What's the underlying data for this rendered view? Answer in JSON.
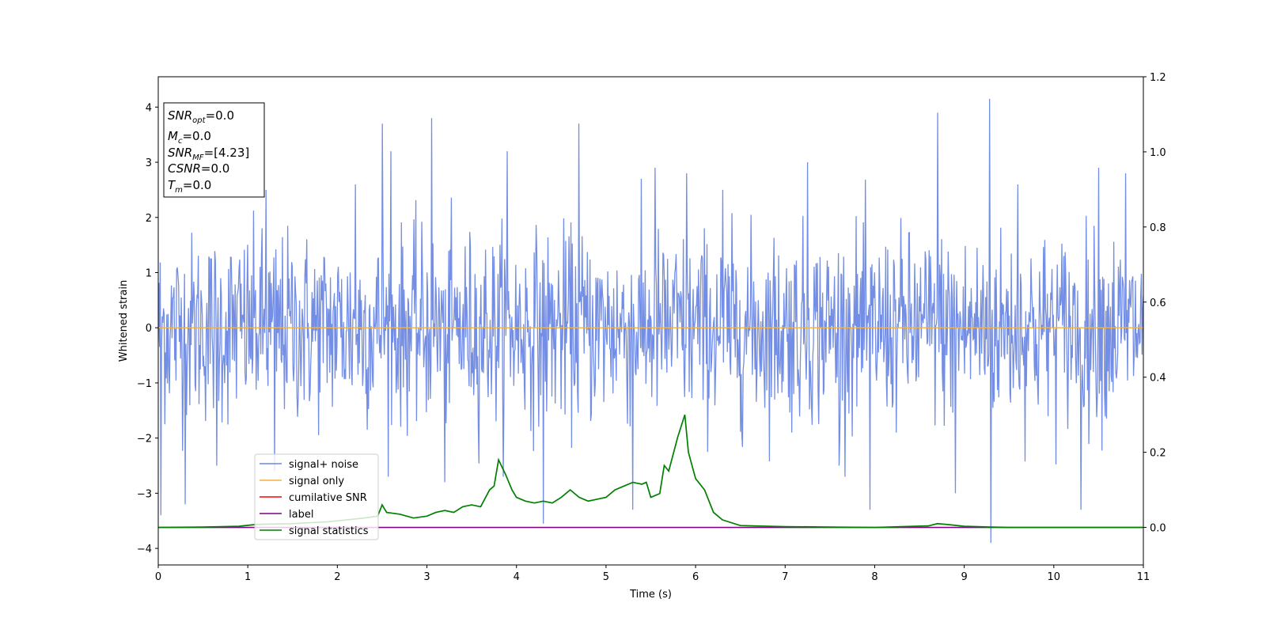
{
  "chart_data": {
    "type": "line",
    "xlabel": "Time (s)",
    "ylabel": "Whitened strain",
    "xlim": [
      0,
      11
    ],
    "ylim": [
      -4.3,
      4.55
    ],
    "y2lim": [
      -0.1,
      1.2
    ],
    "xticks": [
      "0",
      "1",
      "2",
      "3",
      "4",
      "5",
      "6",
      "7",
      "8",
      "9",
      "10",
      "11"
    ],
    "yticks": [
      "−4",
      "−3",
      "−2",
      "−1",
      "0",
      "1",
      "2",
      "3",
      "4"
    ],
    "y2ticks": [
      "0.0",
      "0.2",
      "0.4",
      "0.6",
      "0.8",
      "1.0",
      "1.2"
    ],
    "grid": false,
    "legend_position": "lower-left",
    "series": [
      {
        "name": "signal+ noise",
        "color": "#6b88e3",
        "axis": "left",
        "style": "noise",
        "sigma": 0.85,
        "samples": 1500,
        "spikes": [
          {
            "x": 0.03,
            "y": -3.4
          },
          {
            "x": 0.3,
            "y": -3.2
          },
          {
            "x": 0.65,
            "y": -2.5
          },
          {
            "x": 1.3,
            "y": -2.6
          },
          {
            "x": 2.5,
            "y": 3.7
          },
          {
            "x": 3.05,
            "y": 3.8
          },
          {
            "x": 2.6,
            "y": 3.2
          },
          {
            "x": 3.2,
            "y": -2.8
          },
          {
            "x": 3.9,
            "y": 3.2
          },
          {
            "x": 4.3,
            "y": -3.55
          },
          {
            "x": 4.7,
            "y": 3.7
          },
          {
            "x": 5.3,
            "y": -3.3
          },
          {
            "x": 5.55,
            "y": 2.9
          },
          {
            "x": 5.9,
            "y": 2.8
          },
          {
            "x": 7.25,
            "y": 3.0
          },
          {
            "x": 7.95,
            "y": -3.3
          },
          {
            "x": 8.7,
            "y": 3.9
          },
          {
            "x": 8.9,
            "y": -3.0
          },
          {
            "x": 9.28,
            "y": 4.15
          },
          {
            "x": 9.3,
            "y": -3.9
          },
          {
            "x": 10.3,
            "y": -3.3
          },
          {
            "x": 10.5,
            "y": 2.9
          },
          {
            "x": 1.2,
            "y": 2.5
          },
          {
            "x": 6.3,
            "y": 2.5
          },
          {
            "x": 7.6,
            "y": -2.5
          },
          {
            "x": 10.8,
            "y": 2.8
          },
          {
            "x": 2.2,
            "y": 2.6
          },
          {
            "x": 9.6,
            "y": 2.6
          }
        ]
      },
      {
        "name": "signal only",
        "color": "#f5b041",
        "axis": "left",
        "x": [
          0,
          11
        ],
        "y": [
          0,
          0
        ]
      },
      {
        "name": "cumilative SNR",
        "color": "#ff0000",
        "axis": "right",
        "x": [
          0,
          11
        ],
        "y": [
          0,
          0
        ]
      },
      {
        "name": "label",
        "color": "#800080",
        "axis": "right",
        "x": [
          0,
          11
        ],
        "y": [
          0,
          0
        ]
      },
      {
        "name": "signal statistics",
        "color": "#008000",
        "axis": "right",
        "x": [
          0,
          0.5,
          0.9,
          1.1,
          1.5,
          1.9,
          2.1,
          2.3,
          2.45,
          2.5,
          2.55,
          2.7,
          2.85,
          3.0,
          3.1,
          3.2,
          3.3,
          3.4,
          3.5,
          3.6,
          3.7,
          3.75,
          3.8,
          3.88,
          3.95,
          4.0,
          4.1,
          4.2,
          4.3,
          4.4,
          4.5,
          4.6,
          4.7,
          4.8,
          4.9,
          5.0,
          5.1,
          5.2,
          5.3,
          5.4,
          5.45,
          5.5,
          5.6,
          5.65,
          5.7,
          5.8,
          5.88,
          5.92,
          6.0,
          6.1,
          6.2,
          6.3,
          6.5,
          7.0,
          7.5,
          8.0,
          8.3,
          8.6,
          8.7,
          8.8,
          9.0,
          9.3,
          9.5,
          10.0,
          10.5,
          11.0
        ],
        "y": [
          0.0,
          0.001,
          0.003,
          0.008,
          0.01,
          0.015,
          0.02,
          0.025,
          0.03,
          0.06,
          0.04,
          0.035,
          0.025,
          0.03,
          0.04,
          0.045,
          0.04,
          0.055,
          0.06,
          0.055,
          0.1,
          0.11,
          0.18,
          0.14,
          0.1,
          0.08,
          0.07,
          0.065,
          0.07,
          0.065,
          0.08,
          0.1,
          0.08,
          0.07,
          0.075,
          0.08,
          0.1,
          0.11,
          0.12,
          0.115,
          0.12,
          0.08,
          0.09,
          0.165,
          0.15,
          0.24,
          0.3,
          0.2,
          0.13,
          0.1,
          0.04,
          0.02,
          0.005,
          0.002,
          0.001,
          0.0,
          0.002,
          0.004,
          0.01,
          0.008,
          0.003,
          0.001,
          0.0,
          0.0,
          0.0,
          0.0
        ]
      }
    ],
    "info_box": [
      {
        "base": "SNR",
        "sub": "opt",
        "value": "=0.0"
      },
      {
        "base": "M",
        "sub": "c",
        "value": "=0.0"
      },
      {
        "base": "SNR",
        "sub": "MF",
        "value": "=[4.23]"
      },
      {
        "base": "CSNR",
        "sub": "",
        "value": "=0.0"
      },
      {
        "base": "T",
        "sub": "m",
        "value": "=0.0"
      }
    ]
  }
}
